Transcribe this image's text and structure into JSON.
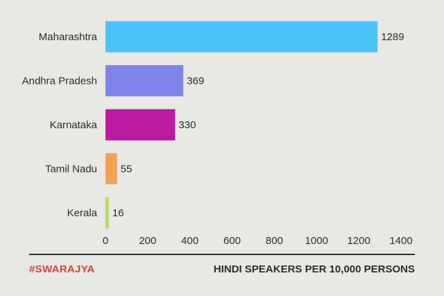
{
  "chart_data": {
    "type": "bar",
    "orientation": "horizontal",
    "categories": [
      "Maharashtra",
      "Andhra Pradesh",
      "Karnataka",
      "Tamil Nadu",
      "Kerala"
    ],
    "values": [
      1289,
      369,
      330,
      55,
      16
    ],
    "value_labels": [
      "1289",
      "369",
      "330",
      "55",
      "16"
    ],
    "colors": [
      "#4cc3fa",
      "#7f83e8",
      "#b91aa0",
      "#f4a154",
      "#bbd96b"
    ],
    "xlim": [
      0,
      1400
    ],
    "xticks": [
      0,
      200,
      400,
      600,
      800,
      1000,
      1200,
      1400
    ],
    "xtick_labels": [
      "0",
      "200",
      "400",
      "600",
      "800",
      "1000",
      "1200",
      "1400"
    ],
    "title": "HINDI SPEAKERS PER 10,000 PERSONS",
    "grid": false
  },
  "footer": {
    "brand": "#SWARAJYA",
    "caption": "HINDI SPEAKERS PER 10,000 PERSONS"
  },
  "colors": {
    "background": "#e8e8e4",
    "brand": "#d2443f",
    "text": "#2b2b2b"
  }
}
